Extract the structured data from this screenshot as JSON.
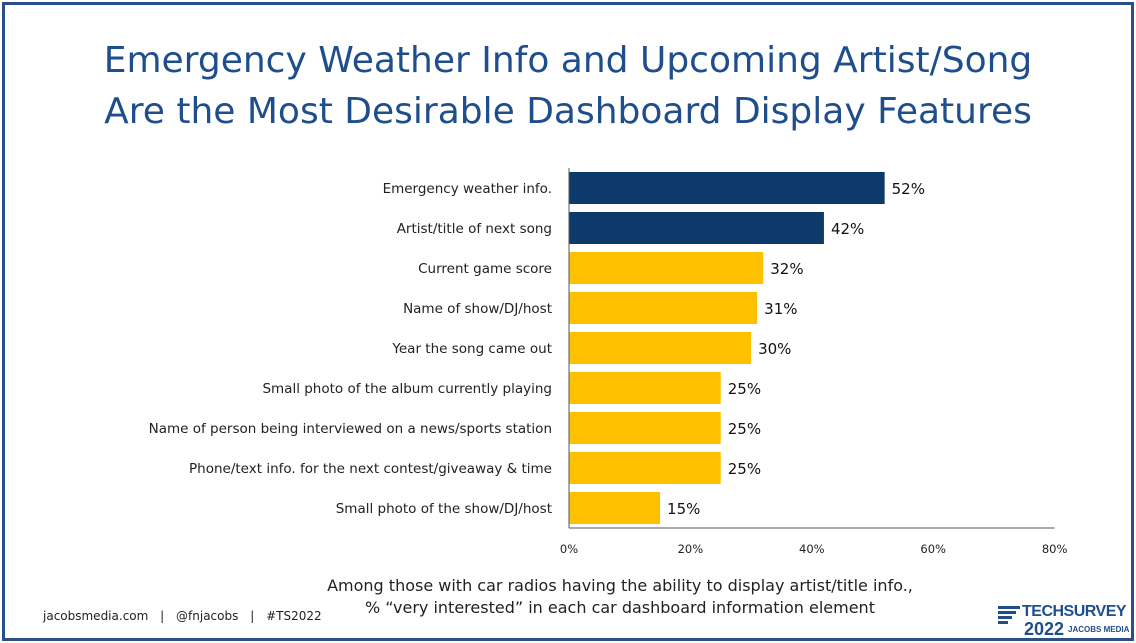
{
  "title_line1": "Emergency Weather Info and Upcoming Artist/Song",
  "title_line2": "Are the Most Desirable Dashboard Display Features",
  "caption_line1": "Among those with car radios having the ability to display artist/title info.,",
  "caption_line2": "% “very interested” in each car dashboard information element",
  "footer": {
    "site": "jacobsmedia.com",
    "sep": "|",
    "handle": "@fnjacobs",
    "hashtag": "#TS2022"
  },
  "logo": {
    "name": "TECHSURVEY",
    "year": "2022",
    "brand": "JACOBS MEDIA"
  },
  "colors": {
    "highlight": "#0e3a6b",
    "bar": "#ffc000",
    "axis": "#555555",
    "title": "#1f4e8c"
  },
  "chart_data": {
    "type": "bar",
    "orientation": "horizontal",
    "categories": [
      "Emergency weather info.",
      "Artist/title of next song",
      "Current game score",
      "Name of show/DJ/host",
      "Year the song came out",
      "Small photo of the album currently playing",
      "Name of person being interviewed on a news/sports station",
      "Phone/text info. for the next contest/giveaway & time",
      "Small photo of the show/DJ/host"
    ],
    "values": [
      52,
      42,
      32,
      31,
      30,
      25,
      25,
      25,
      15
    ],
    "value_labels": [
      "52%",
      "42%",
      "32%",
      "31%",
      "30%",
      "25%",
      "25%",
      "25%",
      "15%"
    ],
    "highlighted": [
      true,
      true,
      false,
      false,
      false,
      false,
      false,
      false,
      false
    ],
    "xlim": [
      0,
      80
    ],
    "xticks": [
      0,
      20,
      40,
      60,
      80
    ],
    "xtick_labels": [
      "0%",
      "20%",
      "40%",
      "60%",
      "80%"
    ],
    "grid": false,
    "xlabel": "",
    "ylabel": ""
  }
}
